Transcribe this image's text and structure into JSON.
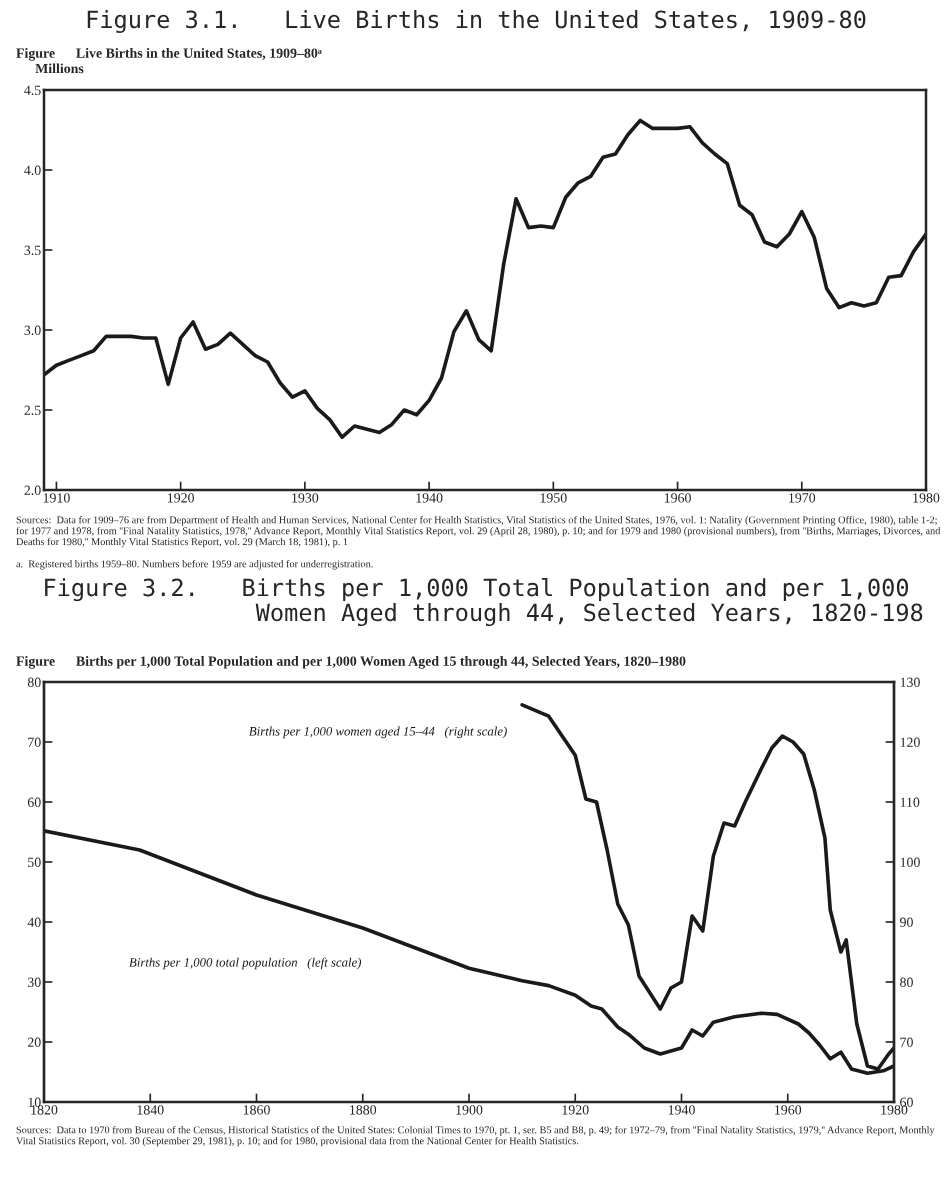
{
  "chart_data": [
    {
      "type": "line",
      "title": "Figure 3.1.   Live Births in the United States, 1909-80",
      "subtitle": "Figure      Live Births in the United States, 1909–80ᵃ",
      "ylabel": "Millions",
      "xlim": [
        1909,
        1980
      ],
      "xticks": [
        1910,
        1920,
        1930,
        1940,
        1950,
        1960,
        1970,
        1980
      ],
      "ylim": [
        2.0,
        4.5
      ],
      "yticks": [
        {
          "value": 2.0,
          "label": "2.0"
        },
        {
          "value": 2.5,
          "label": "2.5"
        },
        {
          "value": 3.0,
          "label": "3.0"
        },
        {
          "value": 3.5,
          "label": "3.5"
        },
        {
          "value": 4.0,
          "label": "4.0"
        },
        {
          "value": 4.5,
          "label": "4.5"
        }
      ],
      "series": [
        {
          "color": "#1a1a1a",
          "x": [
            1909,
            1910,
            1911,
            1912,
            1913,
            1914,
            1915,
            1916,
            1917,
            1918,
            1919,
            1920,
            1921,
            1922,
            1923,
            1924,
            1925,
            1926,
            1927,
            1928,
            1929,
            1930,
            1931,
            1932,
            1933,
            1934,
            1935,
            1936,
            1937,
            1938,
            1939,
            1940,
            1941,
            1942,
            1943,
            1944,
            1945,
            1946,
            1947,
            1948,
            1949,
            1950,
            1951,
            1952,
            1953,
            1954,
            1955,
            1956,
            1957,
            1958,
            1959,
            1960,
            1961,
            1962,
            1963,
            1964,
            1965,
            1966,
            1967,
            1968,
            1969,
            1970,
            1971,
            1972,
            1973,
            1974,
            1975,
            1976,
            1977,
            1978,
            1979,
            1980
          ],
          "values": [
            2.72,
            2.78,
            2.81,
            2.84,
            2.87,
            2.96,
            2.96,
            2.96,
            2.95,
            2.95,
            2.66,
            2.95,
            3.05,
            2.88,
            2.91,
            2.98,
            2.91,
            2.84,
            2.8,
            2.67,
            2.58,
            2.62,
            2.51,
            2.44,
            2.33,
            2.4,
            2.38,
            2.36,
            2.41,
            2.5,
            2.47,
            2.56,
            2.7,
            2.99,
            3.12,
            2.94,
            2.87,
            3.41,
            3.82,
            3.64,
            3.65,
            3.64,
            3.83,
            3.92,
            3.96,
            4.08,
            4.1,
            4.22,
            4.31,
            4.26,
            4.26,
            4.26,
            4.27,
            4.17,
            4.1,
            4.04,
            3.78,
            3.72,
            3.55,
            3.52,
            3.6,
            3.74,
            3.58,
            3.26,
            3.14,
            3.17,
            3.15,
            3.17,
            3.33,
            3.34,
            3.49,
            3.6
          ]
        }
      ],
      "annotations": [
        "Sources:  Data for 1909–76 are from Department of Health and Human Services, National Center for Health Statistics, Vital Statistics of the United States, 1976, vol. 1: Natality (Government Printing Office, 1980), table 1-2; for 1977 and 1978, from ''Final Natality Statistics, 1978,'' Advance Report, Monthly Vital Statistics Report, vol. 29 (April 28, 1980), p. 10; and for 1979 and 1980 (provisional numbers), from ''Births, Marriages, Divorces, and Deaths for 1980,'' Monthly Vital Statistics Report, vol. 29 (March 18, 1981), p. 1",
        "a.  Registered births 1959–80. Numbers before 1959 are adjusted for underregistration."
      ]
    },
    {
      "type": "line",
      "title": "Figure 3.2.   Births per 1,000 Total Population and per 1,000\n                Women Aged through 44, Selected Years, 1820-198",
      "subtitle": "Figure      Births per 1,000 Total Population and per 1,000 Women Aged 15 through 44, Selected Years, 1820–1980",
      "xlim": [
        1820,
        1980
      ],
      "xticks": [
        1820,
        1840,
        1860,
        1880,
        1900,
        1920,
        1940,
        1960,
        1980
      ],
      "ylim": [
        10,
        80
      ],
      "yticks": [
        10,
        20,
        30,
        40,
        50,
        60,
        70,
        80
      ],
      "y2lim": [
        60,
        130
      ],
      "y2ticks": [
        60,
        70,
        80,
        90,
        100,
        110,
        120,
        130
      ],
      "series": [
        {
          "name": "Births per 1,000 women aged 15–44   (right scale)",
          "axis": "y2",
          "color": "#1a1a1a",
          "x": [
            1910,
            1915,
            1920,
            1922,
            1924,
            1926,
            1928,
            1930,
            1932,
            1936,
            1938,
            1940,
            1942,
            1944,
            1946,
            1948,
            1950,
            1952,
            1955,
            1957,
            1959,
            1961,
            1963,
            1965,
            1967,
            1968,
            1970,
            1971,
            1973,
            1975,
            1977,
            1979,
            1980
          ],
          "values": [
            126.2,
            124.3,
            117.8,
            110.5,
            110,
            102,
            93,
            89.5,
            81,
            75.5,
            79,
            80,
            91,
            88.5,
            101,
            106.5,
            106,
            110,
            115.5,
            119,
            121,
            120,
            118,
            112,
            104,
            92,
            85,
            87,
            73,
            66,
            65.5,
            68,
            69
          ]
        },
        {
          "name": "Births per 1,000 total population   (left scale)",
          "axis": "y",
          "color": "#1a1a1a",
          "x": [
            1820,
            1838,
            1860,
            1880,
            1900,
            1910,
            1915,
            1920,
            1923,
            1925,
            1928,
            1930,
            1933,
            1936,
            1940,
            1942,
            1944,
            1946,
            1950,
            1955,
            1958,
            1962,
            1964,
            1966,
            1968,
            1970,
            1972,
            1975,
            1978,
            1980
          ],
          "values": [
            55.2,
            52,
            44.5,
            39,
            32.3,
            30.2,
            29.4,
            27.8,
            26,
            25.5,
            22.5,
            21.3,
            19,
            18,
            19,
            22,
            21,
            23.3,
            24.2,
            24.8,
            24.6,
            23,
            21.5,
            19.5,
            17.2,
            18.3,
            15.5,
            14.8,
            15.2,
            16
          ]
        }
      ],
      "annotations": [
        "Sources:  Data to 1970 from Bureau of the Census, Historical Statistics of the United States: Colonial Times to 1970, pt. 1, ser. B5 and B8, p. 49; for 1972–79, from ''Final Natality Statistics, 1979,'' Advance Report, Monthly Vital Statistics Report, vol. 30 (September 29, 1981), p. 10; and for 1980, provisional data from the National Center for Health Statistics."
      ]
    }
  ]
}
